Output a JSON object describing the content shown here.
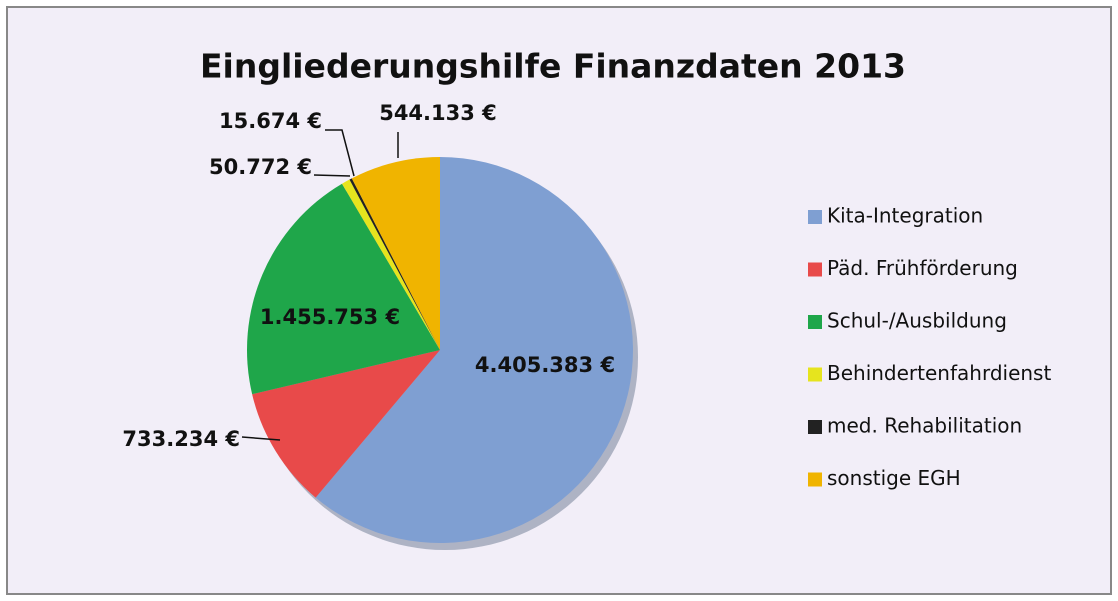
{
  "chart_data": {
    "type": "pie",
    "title": "Eingliederungshilfe  Finanzdaten 2013",
    "categories": [
      "Kita-Integration",
      "Päd. Frühförderung",
      "Schul-/Ausbildung",
      "Behindertenfahrdienst",
      "med. Rehabilitation",
      "sonstige EGH"
    ],
    "values": [
      4405383,
      733234,
      1455753,
      50772,
      15674,
      544133
    ],
    "value_labels": [
      "4.405.383 €",
      "733.234 €",
      "1.455.753 €",
      "50.772 €",
      "15.674 €",
      "544.133 €"
    ],
    "colors": [
      "#7f9fd2",
      "#e84a4a",
      "#1fa64a",
      "#e6e41e",
      "#222222",
      "#f0b400"
    ],
    "legend": "right"
  }
}
